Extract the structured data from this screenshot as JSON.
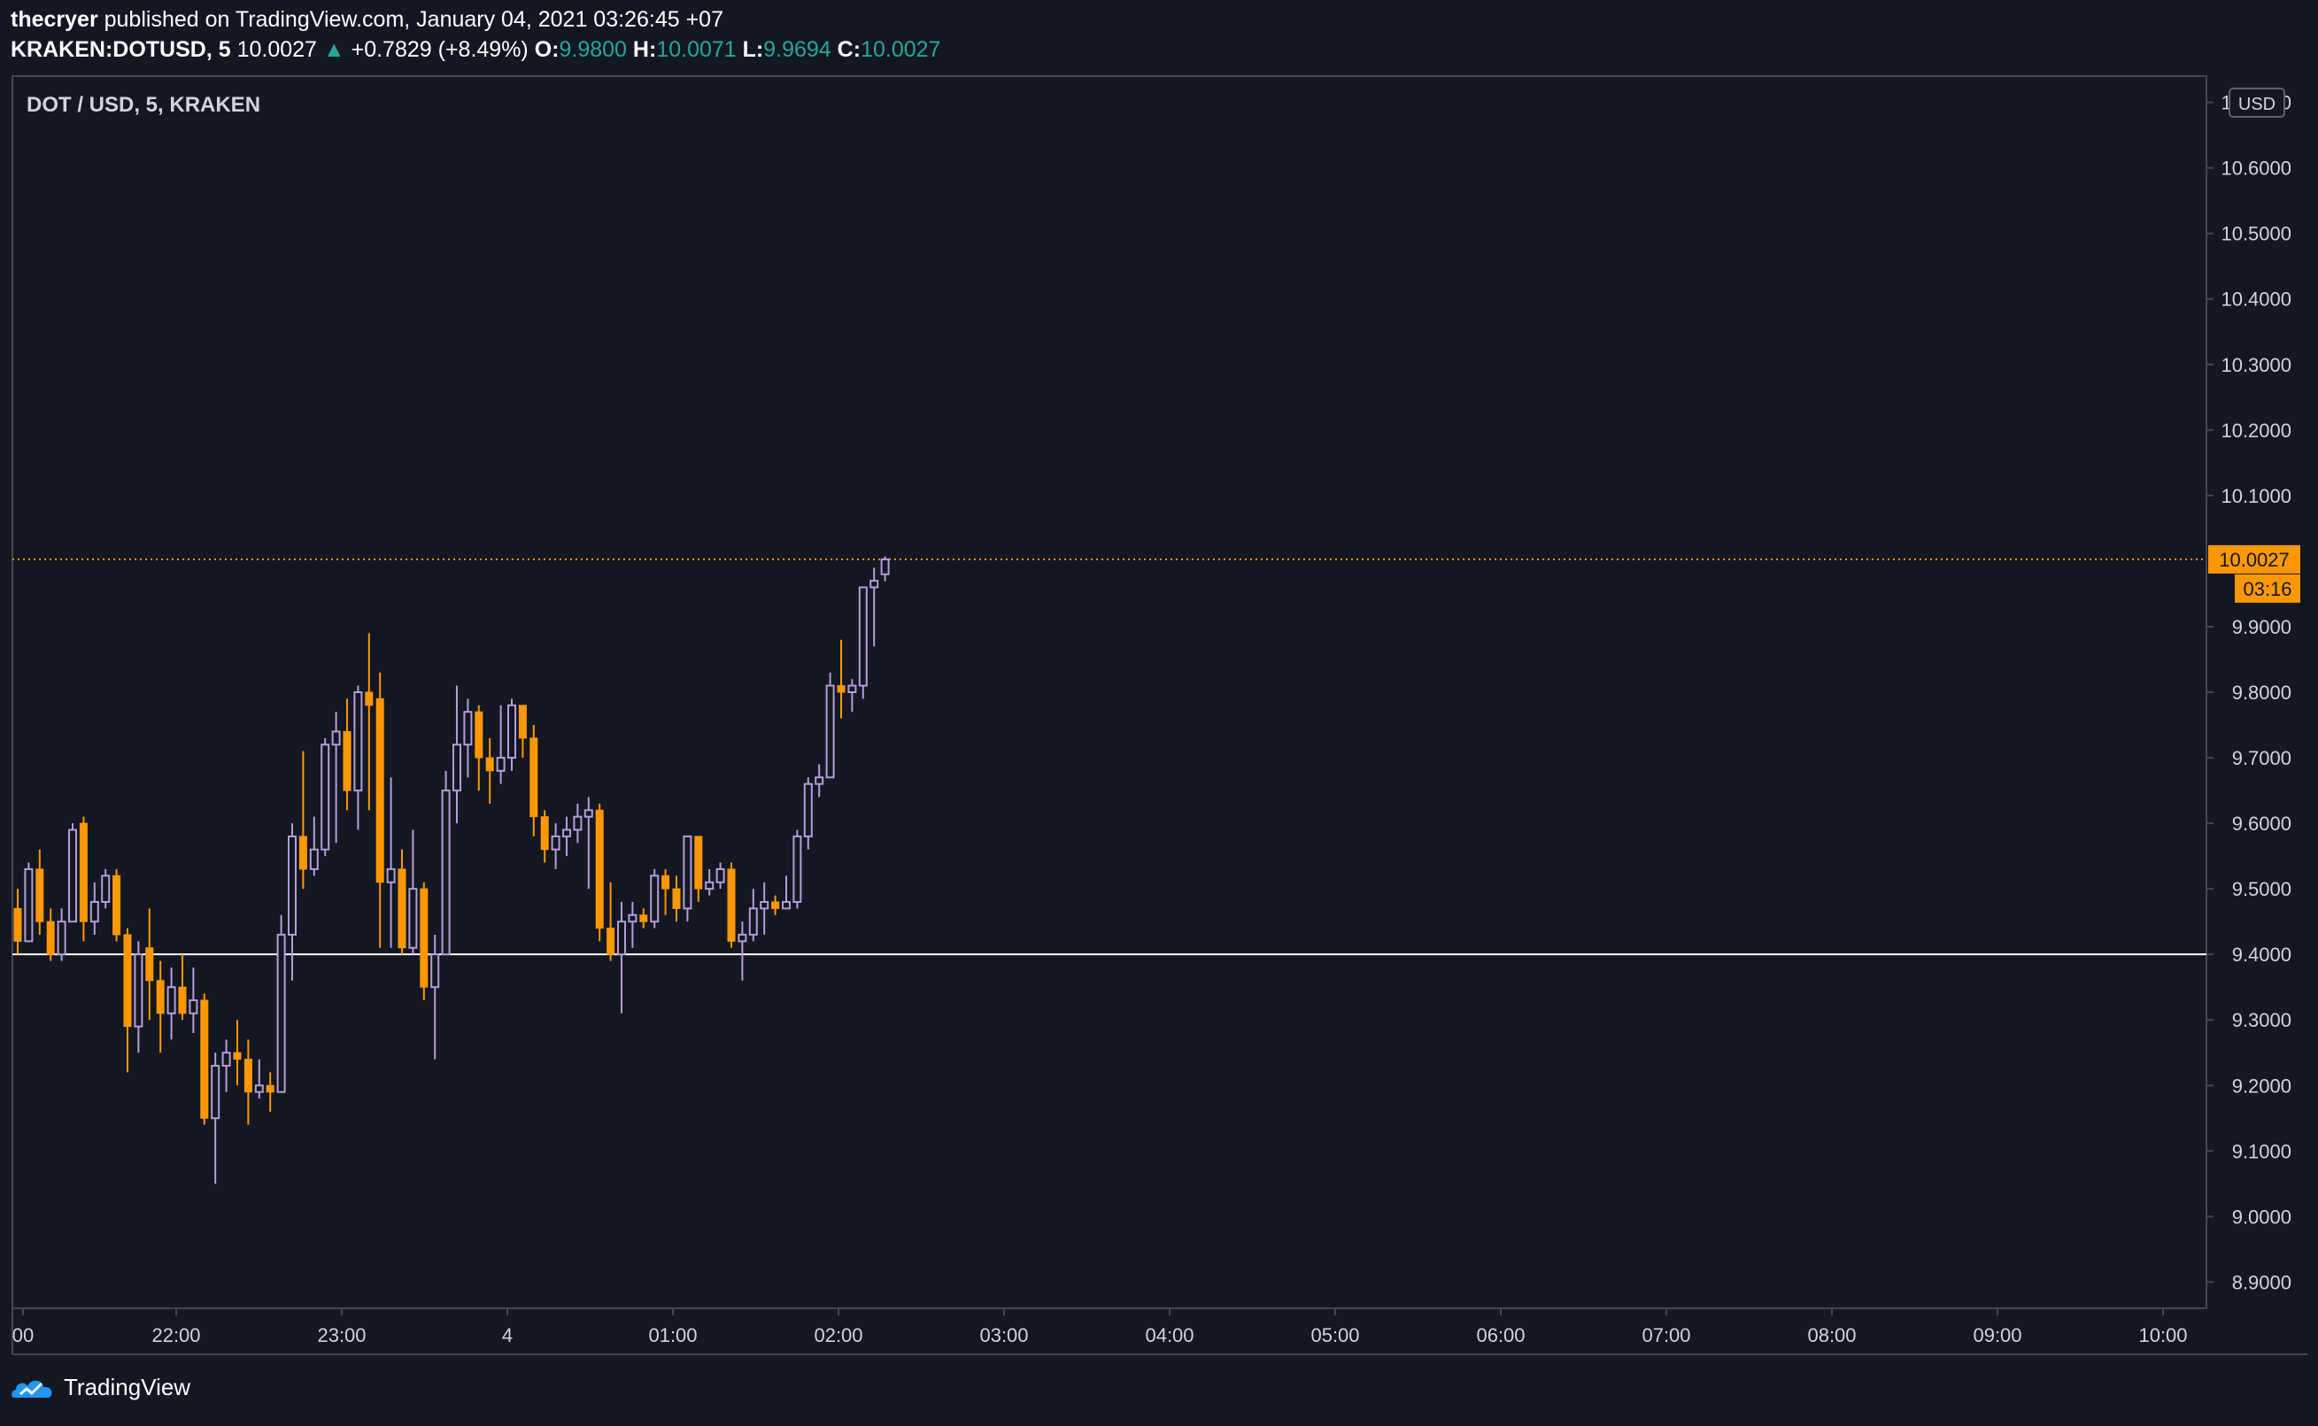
{
  "header": {
    "author": "thecryer",
    "published_text": "published on TradingView.com, January 04, 2021 03:26:45 +07",
    "symbol": "KRAKEN:DOTUSD, 5",
    "last": "10.0027",
    "change": "+0.7829 (+8.49%)",
    "o_label": "O:",
    "o_value": "9.9800",
    "h_label": "H:",
    "h_value": "10.0071",
    "l_label": "L:",
    "l_value": "9.9694",
    "c_label": "C:",
    "c_value": "10.0027"
  },
  "chart_title": "DOT / USD, 5, KRAKEN",
  "footer": {
    "brand": "TradingView"
  },
  "colors": {
    "background": "#131722",
    "up": "#b39ddb",
    "down": "#ff9800",
    "grid_border": "#434651",
    "price_line": "#ff9800",
    "support_line": "#ffffff"
  },
  "chart_data": {
    "type": "candlestick",
    "title": "DOT / USD, 5, KRAKEN",
    "currency_label": "USD",
    "y_ticks": [
      "10.7000",
      "10.6000",
      "10.5000",
      "10.4000",
      "10.3000",
      "10.2000",
      "10.1000",
      "9.9000",
      "9.8000",
      "9.7000",
      "9.6000",
      "9.5000",
      "9.4000",
      "9.3000",
      "9.2000",
      "9.1000",
      "9.0000",
      "8.9000"
    ],
    "x_ticks": [
      "00",
      "22:00",
      "23:00",
      "4",
      "01:00",
      "02:00",
      "03:00",
      "04:00",
      "05:00",
      "06:00",
      "07:00",
      "08:00",
      "09:00",
      "10:00"
    ],
    "ylim": [
      8.86,
      10.74
    ],
    "last_price": 10.0027,
    "last_price_label": "10.0027",
    "countdown_label": "03:16",
    "support_level": 9.4,
    "candles": [
      [
        9.47,
        9.42,
        9.5,
        9.4
      ],
      [
        9.42,
        9.53,
        9.54,
        9.42
      ],
      [
        9.53,
        9.45,
        9.56,
        9.43
      ],
      [
        9.45,
        9.4,
        9.47,
        9.39
      ],
      [
        9.4,
        9.45,
        9.47,
        9.39
      ],
      [
        9.45,
        9.59,
        9.6,
        9.45
      ],
      [
        9.6,
        9.45,
        9.61,
        9.42
      ],
      [
        9.45,
        9.48,
        9.51,
        9.43
      ],
      [
        9.48,
        9.52,
        9.53,
        9.47
      ],
      [
        9.52,
        9.43,
        9.53,
        9.42
      ],
      [
        9.43,
        9.29,
        9.44,
        9.22
      ],
      [
        9.29,
        9.4,
        9.42,
        9.25
      ],
      [
        9.41,
        9.36,
        9.47,
        9.3
      ],
      [
        9.36,
        9.31,
        9.39,
        9.25
      ],
      [
        9.31,
        9.35,
        9.38,
        9.27
      ],
      [
        9.35,
        9.31,
        9.4,
        9.3
      ],
      [
        9.31,
        9.33,
        9.38,
        9.28
      ],
      [
        9.33,
        9.15,
        9.34,
        9.14
      ],
      [
        9.15,
        9.23,
        9.25,
        9.05
      ],
      [
        9.23,
        9.25,
        9.27,
        9.19
      ],
      [
        9.25,
        9.24,
        9.3,
        9.2
      ],
      [
        9.24,
        9.19,
        9.27,
        9.14
      ],
      [
        9.19,
        9.2,
        9.24,
        9.18
      ],
      [
        9.2,
        9.19,
        9.22,
        9.16
      ],
      [
        9.19,
        9.43,
        9.46,
        9.19
      ],
      [
        9.43,
        9.58,
        9.6,
        9.36
      ],
      [
        9.58,
        9.53,
        9.71,
        9.5
      ],
      [
        9.53,
        9.56,
        9.61,
        9.52
      ],
      [
        9.56,
        9.72,
        9.73,
        9.55
      ],
      [
        9.72,
        9.74,
        9.77,
        9.57
      ],
      [
        9.74,
        9.65,
        9.79,
        9.62
      ],
      [
        9.65,
        9.8,
        9.81,
        9.59
      ],
      [
        9.8,
        9.78,
        9.89,
        9.62
      ],
      [
        9.79,
        9.51,
        9.83,
        9.41
      ],
      [
        9.51,
        9.53,
        9.67,
        9.41
      ],
      [
        9.53,
        9.41,
        9.56,
        9.4
      ],
      [
        9.41,
        9.5,
        9.59,
        9.4
      ],
      [
        9.5,
        9.35,
        9.51,
        9.33
      ],
      [
        9.35,
        9.4,
        9.43,
        9.24
      ],
      [
        9.4,
        9.65,
        9.68,
        9.4
      ],
      [
        9.65,
        9.72,
        9.81,
        9.6
      ],
      [
        9.72,
        9.77,
        9.79,
        9.67
      ],
      [
        9.77,
        9.7,
        9.78,
        9.65
      ],
      [
        9.7,
        9.68,
        9.73,
        9.63
      ],
      [
        9.68,
        9.7,
        9.78,
        9.66
      ],
      [
        9.7,
        9.78,
        9.79,
        9.68
      ],
      [
        9.78,
        9.73,
        9.78,
        9.7
      ],
      [
        9.73,
        9.61,
        9.75,
        9.58
      ],
      [
        9.61,
        9.56,
        9.62,
        9.54
      ],
      [
        9.56,
        9.58,
        9.6,
        9.53
      ],
      [
        9.58,
        9.59,
        9.61,
        9.55
      ],
      [
        9.59,
        9.61,
        9.63,
        9.57
      ],
      [
        9.61,
        9.62,
        9.64,
        9.5
      ],
      [
        9.62,
        9.44,
        9.63,
        9.42
      ],
      [
        9.44,
        9.4,
        9.51,
        9.39
      ],
      [
        9.4,
        9.45,
        9.48,
        9.31
      ],
      [
        9.45,
        9.46,
        9.48,
        9.41
      ],
      [
        9.46,
        9.45,
        9.47,
        9.44
      ],
      [
        9.45,
        9.52,
        9.53,
        9.44
      ],
      [
        9.52,
        9.5,
        9.53,
        9.46
      ],
      [
        9.5,
        9.47,
        9.52,
        9.45
      ],
      [
        9.47,
        9.58,
        9.58,
        9.45
      ],
      [
        9.58,
        9.5,
        9.58,
        9.48
      ],
      [
        9.5,
        9.51,
        9.53,
        9.49
      ],
      [
        9.51,
        9.53,
        9.54,
        9.5
      ],
      [
        9.53,
        9.42,
        9.54,
        9.41
      ],
      [
        9.42,
        9.43,
        9.45,
        9.36
      ],
      [
        9.43,
        9.47,
        9.5,
        9.42
      ],
      [
        9.47,
        9.48,
        9.51,
        9.43
      ],
      [
        9.48,
        9.47,
        9.49,
        9.46
      ],
      [
        9.47,
        9.48,
        9.52,
        9.47
      ],
      [
        9.48,
        9.58,
        9.59,
        9.47
      ],
      [
        9.58,
        9.66,
        9.67,
        9.56
      ],
      [
        9.66,
        9.67,
        9.69,
        9.64
      ],
      [
        9.67,
        9.81,
        9.83,
        9.67
      ],
      [
        9.81,
        9.8,
        9.88,
        9.76
      ],
      [
        9.8,
        9.81,
        9.82,
        9.77
      ],
      [
        9.81,
        9.96,
        9.96,
        9.79
      ],
      [
        9.96,
        9.97,
        9.99,
        9.87
      ],
      [
        9.98,
        10.0027,
        10.0071,
        9.9694
      ]
    ]
  }
}
